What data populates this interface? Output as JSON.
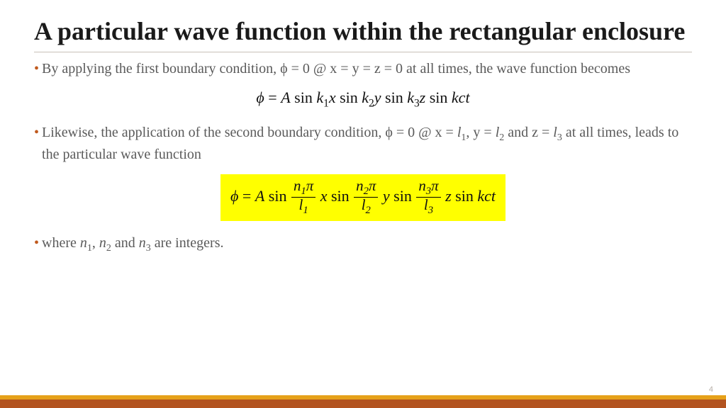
{
  "title": "A particular wave function within the rectangular enclosure",
  "bullets": {
    "b1": "By applying the first boundary condition, ϕ = 0 @ x = y = z = 0 at all times, the wave function becomes",
    "b2_pre": "Likewise, the application of the second boundary condition, ϕ = 0 @ x = ",
    "b2_l1": "l",
    "b2_s1": "1",
    "b2_mid1": ", y = ",
    "b2_l2": "l",
    "b2_s2": "2",
    "b2_mid2": " and  z = ",
    "b2_l3": "l",
    "b2_s3": "3",
    "b2_post": " at all times, leads to the particular wave function",
    "b3_pre": " where ",
    "b3_n1": "n",
    "b3_s1": "1",
    "b3_m1": ", ",
    "b3_n2": "n",
    "b3_s2": "2",
    "b3_m2": " and ",
    "b3_n3": "n",
    "b3_s3": "3",
    "b3_post": " are integers."
  },
  "eq1": {
    "phi": "ϕ",
    "eq": " = ",
    "A": "A",
    "sin": "sin",
    "k1": "k",
    "s1": "1",
    "x": "x",
    "k2": "k",
    "s2": "2",
    "y": "y",
    "k3": "k",
    "s3": "3",
    "z": "z",
    "kct": "kct"
  },
  "eq2": {
    "phi": "ϕ",
    "eq": " = ",
    "A": "A",
    "sin": "sin",
    "n1": "n",
    "s1": "1",
    "pi": "π",
    "l1": "l",
    "ls1": "1",
    "x": " x",
    "n2": "n",
    "s2": "2",
    "l2": "l",
    "ls2": "2",
    "y": " y",
    "n3": "n",
    "s3": "3",
    "l3": "l",
    "ls3": "3",
    "z": " z",
    "kct": "kct"
  },
  "page": "4",
  "colors": {
    "bullet_dot": "#c05a1e",
    "footer_top": "#e6a11a",
    "footer_bottom": "#b35420",
    "highlight": "#ffff00"
  }
}
